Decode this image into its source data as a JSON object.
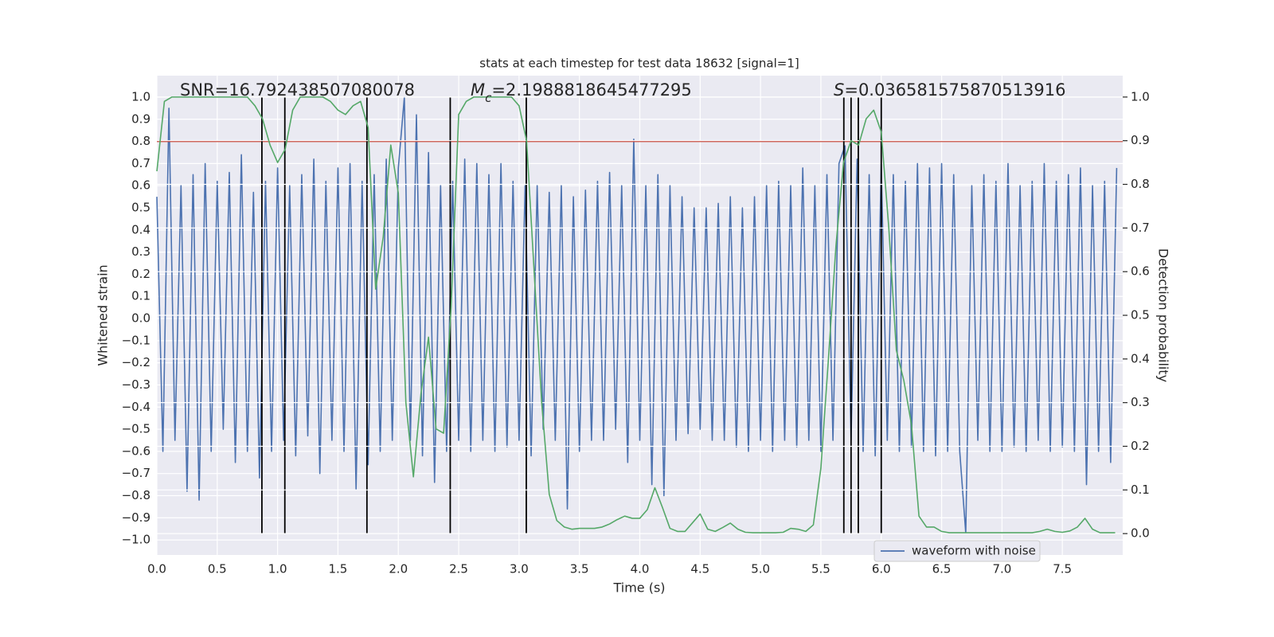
{
  "chart_data": {
    "type": "line",
    "title": "stats at each timestep for test data 18632 [signal=1]",
    "x_label": "Time (s)",
    "y_label": "Whitened strain",
    "y2_label": "Detection probability",
    "background": "#eaeaf2",
    "grid": true,
    "legend": "lower right",
    "xlim": [
      0,
      8.0
    ],
    "ylim": [
      -1.068,
      1.097
    ],
    "y2lim": [
      -0.049,
      1.049
    ],
    "xticks": [
      {
        "value": 0,
        "label": "0.0"
      },
      0.5,
      {
        "value": 1,
        "label": "1.0"
      },
      1.5,
      {
        "value": 2,
        "label": "2.0"
      },
      2.5,
      {
        "value": 3,
        "label": "3.0"
      },
      3.5,
      {
        "value": 4,
        "label": "4.0"
      },
      4.5,
      {
        "value": 5,
        "label": "5.0"
      },
      5.5,
      {
        "value": 6,
        "label": "6.0"
      },
      6.5,
      {
        "value": 7,
        "label": "7.0"
      },
      7.5
    ],
    "yticks": [
      {
        "value": -1,
        "label": "−1.0"
      },
      {
        "value": -0.9,
        "label": "−0.9"
      },
      {
        "value": -0.8,
        "label": "−0.8"
      },
      {
        "value": -0.7,
        "label": "−0.7"
      },
      {
        "value": -0.6,
        "label": "−0.6"
      },
      {
        "value": -0.5,
        "label": "−0.5"
      },
      {
        "value": -0.4,
        "label": "−0.4"
      },
      {
        "value": -0.3,
        "label": "−0.3"
      },
      {
        "value": -0.2,
        "label": "−0.2"
      },
      {
        "value": -0.1,
        "label": "−0.1"
      },
      {
        "value": 0,
        "label": "0.0"
      },
      0.1,
      0.2,
      0.3,
      0.4,
      0.5,
      0.6,
      0.7,
      0.8,
      0.9,
      {
        "value": 1,
        "label": "1.0"
      }
    ],
    "y2ticks": [
      {
        "value": 0,
        "label": "0.0"
      },
      0.1,
      0.2,
      0.3,
      0.4,
      0.5,
      0.6,
      0.7,
      0.8,
      0.9,
      {
        "value": 1,
        "label": "1.0"
      }
    ],
    "series": [
      {
        "name": "waveform with noise",
        "color": "#4c72b0",
        "x": [
          0,
          0.05,
          0.1,
          0.15,
          0.2,
          0.25,
          0.3,
          0.35,
          0.4,
          0.45,
          0.5,
          0.55,
          0.6,
          0.65,
          0.7,
          0.75,
          0.8,
          0.85,
          0.9,
          0.95,
          1,
          1.05,
          1.1,
          1.15,
          1.2,
          1.25,
          1.3,
          1.35,
          1.4,
          1.45,
          1.5,
          1.55,
          1.6,
          1.65,
          1.7,
          1.75,
          1.8,
          1.85,
          1.9,
          1.95,
          2,
          2.05,
          2.1,
          2.15,
          2.2,
          2.25,
          2.3,
          2.35,
          2.4,
          2.45,
          2.5,
          2.55,
          2.6,
          2.65,
          2.7,
          2.75,
          2.8,
          2.85,
          2.9,
          2.95,
          3,
          3.05,
          3.1,
          3.15,
          3.2,
          3.25,
          3.3,
          3.35,
          3.4,
          3.45,
          3.5,
          3.55,
          3.6,
          3.65,
          3.7,
          3.75,
          3.8,
          3.85,
          3.9,
          3.95,
          4,
          4.05,
          4.1,
          4.15,
          4.2,
          4.25,
          4.3,
          4.35,
          4.4,
          4.45,
          4.5,
          4.55,
          4.6,
          4.65,
          4.7,
          4.75,
          4.8,
          4.85,
          4.9,
          4.95,
          5,
          5.05,
          5.1,
          5.15,
          5.2,
          5.25,
          5.3,
          5.35,
          5.4,
          5.45,
          5.5,
          5.55,
          5.6,
          5.65,
          5.7,
          5.75,
          5.8,
          5.85,
          5.9,
          5.95,
          6,
          6.05,
          6.1,
          6.15,
          6.2,
          6.25,
          6.3,
          6.35,
          6.4,
          6.45,
          6.5,
          6.55,
          6.6,
          6.65,
          6.7,
          6.75,
          6.8,
          6.85,
          6.9,
          6.95,
          7,
          7.05,
          7.1,
          7.15,
          7.2,
          7.25,
          7.3,
          7.35,
          7.4,
          7.45,
          7.5,
          7.55,
          7.6,
          7.65,
          7.7,
          7.75,
          7.8,
          7.85,
          7.9,
          7.95
        ],
        "values": [
          0.55,
          -0.6,
          0.95,
          -0.55,
          0.6,
          -0.78,
          0.65,
          -0.82,
          0.7,
          -0.6,
          0.62,
          -0.5,
          0.66,
          -0.65,
          0.74,
          -0.6,
          0.57,
          -0.72,
          0.62,
          -0.6,
          0.68,
          -0.55,
          0.6,
          -0.62,
          0.65,
          -0.53,
          0.72,
          -0.7,
          0.62,
          -0.55,
          0.68,
          -0.6,
          0.7,
          -0.77,
          0.62,
          -0.66,
          0.65,
          -0.6,
          0.72,
          -0.55,
          0.68,
          1.0,
          -0.55,
          0.92,
          -0.62,
          0.75,
          -0.74,
          0.6,
          -0.6,
          0.62,
          -0.55,
          0.72,
          -0.6,
          0.7,
          -0.55,
          0.65,
          -0.6,
          0.7,
          -0.58,
          0.62,
          -0.55,
          0.6,
          -0.62,
          0.6,
          -0.5,
          0.57,
          -0.55,
          0.6,
          -0.86,
          0.55,
          -0.6,
          0.58,
          -0.55,
          0.62,
          -0.55,
          0.66,
          -0.5,
          0.6,
          -0.65,
          0.81,
          -0.55,
          0.6,
          -0.75,
          0.65,
          -0.8,
          0.6,
          -0.55,
          0.55,
          -0.52,
          0.5,
          -0.5,
          0.5,
          -0.55,
          0.52,
          -0.55,
          0.55,
          -0.58,
          0.5,
          -0.6,
          0.55,
          -0.55,
          0.6,
          -0.6,
          0.62,
          -0.55,
          0.6,
          -0.58,
          0.68,
          -0.55,
          0.6,
          -0.6,
          0.65,
          -0.55,
          0.7,
          0.78,
          -0.55,
          0.72,
          -0.6,
          0.65,
          -0.62,
          0.7,
          -0.55,
          0.65,
          -0.6,
          0.62,
          -0.58,
          0.7,
          -0.6,
          0.68,
          -0.62,
          0.7,
          -0.6,
          0.65,
          -0.6,
          -0.97,
          0.6,
          -0.55,
          0.65,
          -0.6,
          0.62,
          -0.6,
          0.7,
          -0.58,
          0.6,
          -0.6,
          0.62,
          -0.55,
          0.7,
          -0.6,
          0.62,
          -0.58,
          0.65,
          -0.6,
          0.68,
          -0.75,
          0.6,
          -0.6,
          0.62,
          -0.65,
          0.68
        ]
      },
      {
        "color": "#55a868",
        "axis": "y2",
        "x": [
          0,
          0.0625,
          0.125,
          0.1875,
          0.25,
          0.3125,
          0.375,
          0.4375,
          0.5,
          0.5625,
          0.625,
          0.6875,
          0.75,
          0.8125,
          0.875,
          0.9375,
          1,
          1.0625,
          1.125,
          1.1875,
          1.25,
          1.3125,
          1.375,
          1.4375,
          1.5,
          1.5625,
          1.625,
          1.6875,
          1.75,
          1.8125,
          1.875,
          1.9375,
          2,
          2.0625,
          2.125,
          2.1875,
          2.25,
          2.3125,
          2.375,
          2.4375,
          2.5,
          2.5625,
          2.625,
          2.6875,
          2.75,
          2.8125,
          2.875,
          2.9375,
          3,
          3.0625,
          3.125,
          3.1875,
          3.25,
          3.3125,
          3.375,
          3.4375,
          3.5,
          3.5625,
          3.625,
          3.6875,
          3.75,
          3.8125,
          3.875,
          3.9375,
          4,
          4.0625,
          4.125,
          4.1875,
          4.25,
          4.3125,
          4.375,
          4.4375,
          4.5,
          4.5625,
          4.625,
          4.6875,
          4.75,
          4.8125,
          4.875,
          4.9375,
          5,
          5.0625,
          5.125,
          5.1875,
          5.25,
          5.3125,
          5.375,
          5.4375,
          5.5,
          5.5625,
          5.625,
          5.6875,
          5.75,
          5.8125,
          5.875,
          5.9375,
          6,
          6.0625,
          6.125,
          6.1875,
          6.25,
          6.3125,
          6.375,
          6.4375,
          6.5,
          6.5625,
          6.625,
          6.6875,
          6.75,
          6.8125,
          6.875,
          6.9375,
          7,
          7.0625,
          7.125,
          7.1875,
          7.25,
          7.3125,
          7.375,
          7.4375,
          7.5,
          7.5625,
          7.625,
          7.6875,
          7.75,
          7.8125,
          7.875,
          7.9375
        ],
        "values": [
          0.83,
          0.99,
          1.0,
          1.0,
          1.0,
          1.0,
          1.0,
          1.0,
          1.0,
          1.0,
          1.0,
          1.0,
          1.0,
          0.98,
          0.95,
          0.89,
          0.85,
          0.88,
          0.97,
          1.0,
          1.0,
          1.0,
          1.0,
          0.99,
          0.97,
          0.96,
          0.98,
          0.99,
          0.93,
          0.56,
          0.68,
          0.89,
          0.78,
          0.3,
          0.13,
          0.32,
          0.45,
          0.24,
          0.23,
          0.52,
          0.96,
          0.99,
          1.0,
          1.0,
          1.0,
          1.0,
          1.0,
          1.0,
          0.98,
          0.9,
          0.6,
          0.3,
          0.09,
          0.03,
          0.015,
          0.01,
          0.012,
          0.012,
          0.012,
          0.015,
          0.022,
          0.032,
          0.04,
          0.035,
          0.035,
          0.055,
          0.105,
          0.06,
          0.012,
          0.005,
          0.005,
          0.025,
          0.045,
          0.01,
          0.005,
          0.014,
          0.024,
          0.01,
          0.003,
          0.002,
          0.002,
          0.002,
          0.002,
          0.003,
          0.012,
          0.01,
          0.005,
          0.02,
          0.15,
          0.4,
          0.66,
          0.85,
          0.9,
          0.89,
          0.95,
          0.97,
          0.92,
          0.7,
          0.42,
          0.35,
          0.25,
          0.04,
          0.015,
          0.015,
          0.005,
          0.002,
          0.002,
          0.002,
          0.002,
          0.002,
          0.002,
          0.002,
          0.002,
          0.002,
          0.002,
          0.002,
          0.002,
          0.005,
          0.01,
          0.005,
          0.003,
          0.006,
          0.015,
          0.035,
          0.01,
          0.002,
          0.002,
          0.002
        ]
      }
    ],
    "threshold": {
      "value": 0.8,
      "color": "#c0392b"
    },
    "vlines": {
      "x": [
        0.87,
        1.06,
        1.74,
        2.43,
        3.06,
        5.69,
        5.75,
        5.81,
        6.0
      ],
      "ymin": -0.97,
      "ymax": 1.0,
      "color": "#000000"
    },
    "annotations": [
      {
        "parts": [
          {
            "text": "SNR=16.792438507080078"
          }
        ]
      },
      {
        "parts": [
          {
            "text": "M",
            "style": "italic"
          },
          {
            "text": "c",
            "style": "italic-sub"
          },
          {
            "text": "=2.1988818645477295"
          }
        ]
      },
      {
        "parts": [
          {
            "text": "S",
            "style": "italic"
          },
          {
            "text": "=0.036581575870513916"
          }
        ]
      }
    ]
  }
}
